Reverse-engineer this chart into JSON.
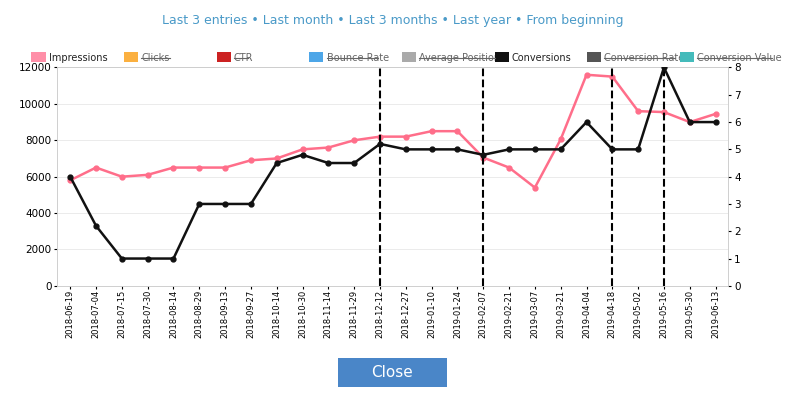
{
  "x_labels": [
    "2018-06-19",
    "2018-07-04",
    "2018-07-15",
    "2018-07-30",
    "2018-08-14",
    "2018-08-29",
    "2018-09-13",
    "2018-09-27",
    "2018-10-14",
    "2018-10-30",
    "2018-11-14",
    "2018-11-29",
    "2018-12-12",
    "2018-12-27",
    "2019-01-10",
    "2019-01-24",
    "2019-02-07",
    "2019-02-21",
    "2019-03-07",
    "2019-03-21",
    "2019-04-04",
    "2019-04-18",
    "2019-05-02",
    "2019-05-16",
    "2019-05-30",
    "2019-06-13"
  ],
  "impressions": [
    5800,
    6500,
    6000,
    6100,
    6500,
    6500,
    6500,
    6900,
    7000,
    7500,
    7600,
    8000,
    8200,
    8200,
    8500,
    8500,
    7050,
    6500,
    5400,
    8050,
    11600,
    11500,
    9600,
    9550,
    9000,
    9450
  ],
  "conversions": [
    4.0,
    2.2,
    1.0,
    1.0,
    1.0,
    3.0,
    3.0,
    3.0,
    4.5,
    4.8,
    4.5,
    4.5,
    5.2,
    5.0,
    5.0,
    5.0,
    4.8,
    5.0,
    5.0,
    5.0,
    6.0,
    5.0,
    5.0,
    8.0,
    6.0,
    6.0
  ],
  "vlines": [
    "2018-12-12",
    "2019-02-07",
    "2019-04-18",
    "2019-05-16"
  ],
  "impressions_color": "#ff6e8a",
  "conversions_color": "#111111",
  "ylim_left": [
    0,
    12000
  ],
  "ylim_right": [
    0,
    8
  ],
  "yticks_left": [
    0,
    2000,
    4000,
    6000,
    8000,
    10000,
    12000
  ],
  "yticks_right": [
    0,
    1,
    2,
    3,
    4,
    5,
    6,
    7,
    8
  ],
  "bg_color": "#ffffff",
  "grid_color": "#e8e8e8",
  "legend_items": [
    {
      "label": "Impressions",
      "color": "#ff8fa8",
      "strikethrough": false
    },
    {
      "label": "Clicks",
      "color": "#fbb040",
      "strikethrough": true
    },
    {
      "label": "CTR",
      "color": "#cc2222",
      "strikethrough": true
    },
    {
      "label": "Bounce Rate",
      "color": "#4da6e8",
      "strikethrough": true
    },
    {
      "label": "Average Position",
      "color": "#aaaaaa",
      "strikethrough": true
    },
    {
      "label": "Conversions",
      "color": "#111111",
      "strikethrough": false
    },
    {
      "label": "Conversion Rate",
      "color": "#555555",
      "strikethrough": true
    },
    {
      "label": "Conversion Value",
      "color": "#44bbbb",
      "strikethrough": true
    }
  ],
  "close_button_color": "#4a86c8",
  "close_button_text": "Close",
  "header_text": "Last 3 entries • Last month • Last 3 months • Last year • From beginning",
  "header_color": "#4a9ac8"
}
